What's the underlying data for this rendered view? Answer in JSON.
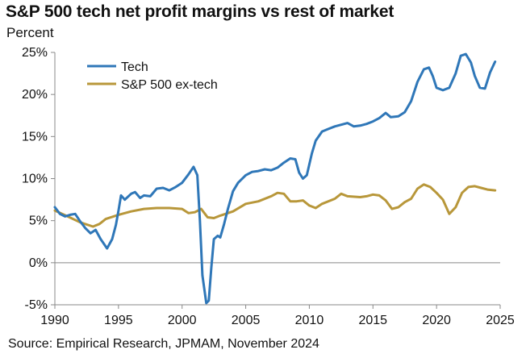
{
  "title": "S&P 500 tech net profit margins vs rest of market",
  "unit_label": "Percent",
  "source": "Source: Empirical Research, JPMAM, November 2024",
  "colors": {
    "tech": "#2f77b8",
    "ex_tech": "#b8973a",
    "axis": "#888888"
  },
  "chart_data": {
    "type": "line",
    "title": "S&P 500 tech net profit margins vs rest of market",
    "ylabel": "Percent",
    "xlabel": "",
    "xlim": [
      1990,
      2025
    ],
    "ylim": [
      -5,
      25
    ],
    "x_ticks": [
      1990,
      1995,
      2000,
      2005,
      2010,
      2015,
      2020,
      2025
    ],
    "x_tick_labels": [
      "1990",
      "1995",
      "2000",
      "2005",
      "2010",
      "2015",
      "2020",
      "2025"
    ],
    "y_ticks": [
      -5,
      0,
      5,
      10,
      15,
      20,
      25
    ],
    "y_tick_labels": [
      "-5%",
      "0%",
      "5%",
      "10%",
      "15%",
      "20%",
      "25%"
    ],
    "legend_position": "top-left",
    "series": [
      {
        "name": "Tech",
        "color": "#2f77b8",
        "points": [
          [
            1990.0,
            6.6
          ],
          [
            1990.4,
            5.8
          ],
          [
            1990.8,
            5.5
          ],
          [
            1991.2,
            5.7
          ],
          [
            1991.6,
            5.8
          ],
          [
            1992.0,
            4.9
          ],
          [
            1992.4,
            4.1
          ],
          [
            1992.8,
            3.5
          ],
          [
            1993.2,
            3.9
          ],
          [
            1993.6,
            2.8
          ],
          [
            1994.1,
            1.7
          ],
          [
            1994.5,
            2.8
          ],
          [
            1994.8,
            4.5
          ],
          [
            1995.0,
            6.2
          ],
          [
            1995.2,
            8.0
          ],
          [
            1995.5,
            7.5
          ],
          [
            1996.0,
            8.2
          ],
          [
            1996.3,
            8.4
          ],
          [
            1996.7,
            7.7
          ],
          [
            1997.0,
            8.0
          ],
          [
            1997.5,
            7.9
          ],
          [
            1998.0,
            8.8
          ],
          [
            1998.5,
            8.9
          ],
          [
            1999.0,
            8.6
          ],
          [
            1999.5,
            9.0
          ],
          [
            2000.0,
            9.5
          ],
          [
            2000.5,
            10.5
          ],
          [
            2000.9,
            11.4
          ],
          [
            2001.2,
            10.4
          ],
          [
            2001.4,
            5.0
          ],
          [
            2001.6,
            -1.5
          ],
          [
            2001.9,
            -4.8
          ],
          [
            2002.1,
            -4.5
          ],
          [
            2002.3,
            -0.5
          ],
          [
            2002.5,
            2.8
          ],
          [
            2002.8,
            3.2
          ],
          [
            2003.0,
            3.0
          ],
          [
            2003.3,
            4.6
          ],
          [
            2003.6,
            6.4
          ],
          [
            2004.0,
            8.5
          ],
          [
            2004.4,
            9.5
          ],
          [
            2005.0,
            10.4
          ],
          [
            2005.5,
            10.8
          ],
          [
            2006.0,
            10.9
          ],
          [
            2006.5,
            11.1
          ],
          [
            2007.0,
            11.0
          ],
          [
            2007.5,
            11.3
          ],
          [
            2008.0,
            11.9
          ],
          [
            2008.5,
            12.4
          ],
          [
            2008.9,
            12.3
          ],
          [
            2009.2,
            10.7
          ],
          [
            2009.5,
            10.0
          ],
          [
            2009.8,
            10.4
          ],
          [
            2010.2,
            13.0
          ],
          [
            2010.5,
            14.5
          ],
          [
            2011.0,
            15.6
          ],
          [
            2011.5,
            15.9
          ],
          [
            2012.0,
            16.2
          ],
          [
            2012.5,
            16.4
          ],
          [
            2013.0,
            16.6
          ],
          [
            2013.5,
            16.2
          ],
          [
            2014.0,
            16.3
          ],
          [
            2014.5,
            16.5
          ],
          [
            2015.0,
            16.8
          ],
          [
            2015.5,
            17.2
          ],
          [
            2016.0,
            17.8
          ],
          [
            2016.4,
            17.3
          ],
          [
            2017.0,
            17.4
          ],
          [
            2017.5,
            17.9
          ],
          [
            2018.0,
            19.2
          ],
          [
            2018.5,
            21.5
          ],
          [
            2019.0,
            23.0
          ],
          [
            2019.4,
            23.2
          ],
          [
            2019.7,
            22.2
          ],
          [
            2020.0,
            20.8
          ],
          [
            2020.5,
            20.5
          ],
          [
            2021.0,
            20.8
          ],
          [
            2021.5,
            22.5
          ],
          [
            2021.9,
            24.6
          ],
          [
            2022.3,
            24.8
          ],
          [
            2022.7,
            23.8
          ],
          [
            2023.0,
            22.2
          ],
          [
            2023.4,
            20.8
          ],
          [
            2023.8,
            20.7
          ],
          [
            2024.2,
            22.6
          ],
          [
            2024.6,
            23.9
          ]
        ]
      },
      {
        "name": "S&P 500 ex-tech",
        "color": "#b8973a",
        "points": [
          [
            1990.0,
            6.2
          ],
          [
            1991.0,
            5.5
          ],
          [
            1992.0,
            4.8
          ],
          [
            1993.0,
            4.3
          ],
          [
            1993.5,
            4.6
          ],
          [
            1994.0,
            5.2
          ],
          [
            1995.0,
            5.7
          ],
          [
            1996.0,
            6.1
          ],
          [
            1997.0,
            6.4
          ],
          [
            1998.0,
            6.5
          ],
          [
            1999.0,
            6.5
          ],
          [
            2000.0,
            6.4
          ],
          [
            2000.5,
            5.9
          ],
          [
            2001.0,
            6.0
          ],
          [
            2001.5,
            6.4
          ],
          [
            2002.0,
            5.4
          ],
          [
            2002.5,
            5.3
          ],
          [
            2003.0,
            5.6
          ],
          [
            2004.0,
            6.1
          ],
          [
            2005.0,
            7.0
          ],
          [
            2006.0,
            7.3
          ],
          [
            2007.0,
            7.9
          ],
          [
            2007.5,
            8.3
          ],
          [
            2008.0,
            8.2
          ],
          [
            2008.5,
            7.3
          ],
          [
            2009.0,
            7.3
          ],
          [
            2009.5,
            7.4
          ],
          [
            2010.0,
            6.8
          ],
          [
            2010.5,
            6.5
          ],
          [
            2011.0,
            7.0
          ],
          [
            2012.0,
            7.6
          ],
          [
            2012.5,
            8.2
          ],
          [
            2013.0,
            7.9
          ],
          [
            2014.0,
            7.8
          ],
          [
            2014.5,
            7.9
          ],
          [
            2015.0,
            8.1
          ],
          [
            2015.5,
            8.0
          ],
          [
            2016.0,
            7.4
          ],
          [
            2016.5,
            6.4
          ],
          [
            2017.0,
            6.6
          ],
          [
            2017.5,
            7.2
          ],
          [
            2018.0,
            7.6
          ],
          [
            2018.5,
            8.8
          ],
          [
            2019.0,
            9.3
          ],
          [
            2019.5,
            9.0
          ],
          [
            2020.0,
            8.3
          ],
          [
            2020.5,
            7.5
          ],
          [
            2021.0,
            5.8
          ],
          [
            2021.5,
            6.6
          ],
          [
            2022.0,
            8.3
          ],
          [
            2022.5,
            9.0
          ],
          [
            2023.0,
            9.1
          ],
          [
            2023.5,
            8.9
          ],
          [
            2024.0,
            8.7
          ],
          [
            2024.6,
            8.6
          ]
        ]
      }
    ]
  }
}
